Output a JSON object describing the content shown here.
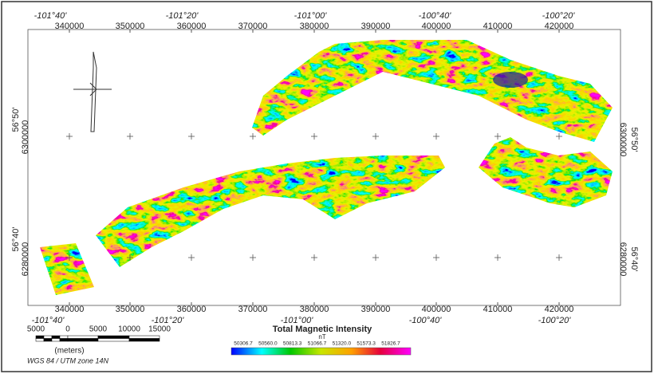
{
  "map": {
    "top_longitudes": [
      "-101°40'",
      "-101°20'",
      "-101°00'",
      "-100°40'",
      "-100°20'"
    ],
    "top_eastings": [
      340000,
      350000,
      360000,
      370000,
      380000,
      390000,
      400000,
      410000,
      420000
    ],
    "left_labels": [
      "56°50'",
      "6300000",
      "56°40'",
      "6280000"
    ],
    "right_labels": [
      "6300000",
      "56°50'",
      "6280000",
      "56°40'"
    ],
    "bottom_eastings": [
      340000,
      350000,
      360000,
      370000,
      380000,
      390000,
      400000,
      410000,
      420000
    ],
    "bottom_longitudes": [
      "-101°40'",
      "-101°20'",
      "-101°00'",
      "-100°40'",
      "-100°20'"
    ],
    "scale_bar": {
      "ticks": [
        "5000",
        "0",
        "5000",
        "10000",
        "15000"
      ],
      "unit": "(meters)",
      "projection": "WGS 84 / UTM zone 14N"
    },
    "legend": {
      "title": "Total Magnetic Intensity",
      "unit": "nT",
      "ticks": [
        "50306.7",
        "50560.0",
        "50813.3",
        "51066.7",
        "51320.0",
        "51573.3",
        "51826.7"
      ]
    }
  }
}
